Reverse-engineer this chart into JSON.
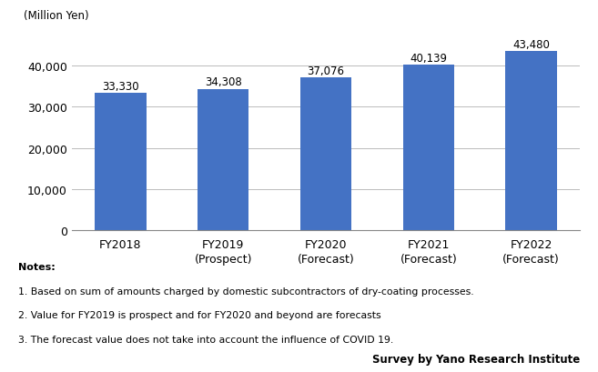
{
  "categories": [
    "FY2018",
    "FY2019\n(Prospect)",
    "FY2020\n(Forecast)",
    "FY2021\n(Forecast)",
    "FY2022\n(Forecast)"
  ],
  "values": [
    33330,
    34308,
    37076,
    40139,
    43480
  ],
  "labels": [
    "33,330",
    "34,308",
    "37,076",
    "40,139",
    "43,480"
  ],
  "bar_color": "#4472C4",
  "ylabel": "(Million Yen)",
  "ylim": [
    0,
    48000
  ],
  "yticks": [
    0,
    10000,
    20000,
    30000,
    40000
  ],
  "ytick_labels": [
    "0",
    "10,000",
    "20,000",
    "30,000",
    "40,000"
  ],
  "notes_title": "Notes:",
  "notes": [
    "1. Based on sum of amounts charged by domestic subcontractors of dry-coating processes.",
    "2. Value for FY2019 is prospect and for FY2020 and beyond are forecasts",
    "3. The forecast value does not take into account the influence of COVID 19."
  ],
  "survey_text": "Survey by Yano Research Institute",
  "background_color": "#ffffff",
  "bar_width": 0.5
}
